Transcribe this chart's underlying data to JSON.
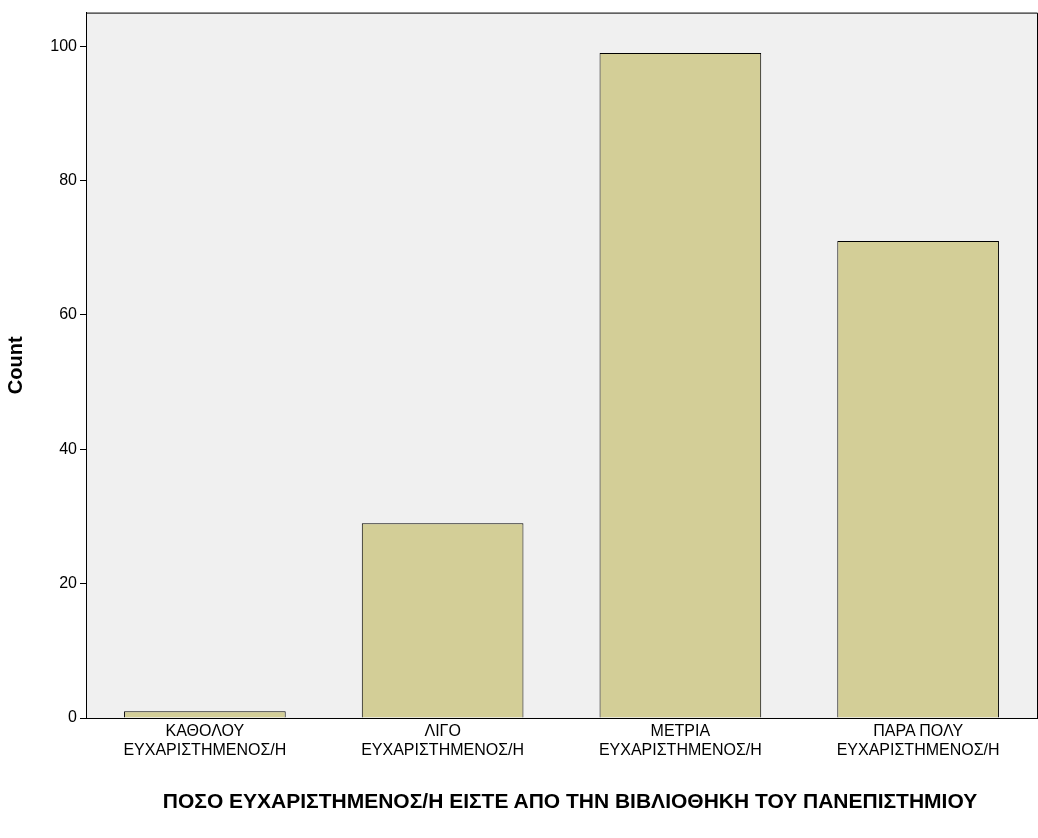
{
  "chart_data": {
    "type": "bar",
    "xlabel": "ΠΟΣΟ ΕΥΧΑΡΙΣΤΗΜΕΝΟΣ/Η ΕΙΣΤΕ ΑΠΟ ΤΗΝ ΒΙΒΛΙΟΘΗΚΗ ΤΟΥ ΠΑΝΕΠΙΣΤΗΜΙΟΥ",
    "ylabel": "Count",
    "categories": [
      "ΚΑΘΟΛΟΥ\nΕΥΧΑΡΙΣΤΗΜΕΝΟΣ/Η",
      "ΛΙΓΟ\nΕΥΧΑΡΙΣΤΗΜΕΝΟΣ/Η",
      "ΜΕΤΡΙΑ\nΕΥΧΑΡΙΣΤΗΜΕΝΟΣ/Η",
      "ΠΑΡΑ ΠΟΛΥ\nΕΥΧΑΡΙΣΤΗΜΕΝΟΣ/Η"
    ],
    "values": [
      1,
      29,
      99,
      71
    ],
    "color": "#d3ce97",
    "ylim": [
      0,
      105
    ],
    "yticks": [
      0,
      20,
      40,
      60,
      80,
      100
    ],
    "grid": false,
    "legend": false
  }
}
